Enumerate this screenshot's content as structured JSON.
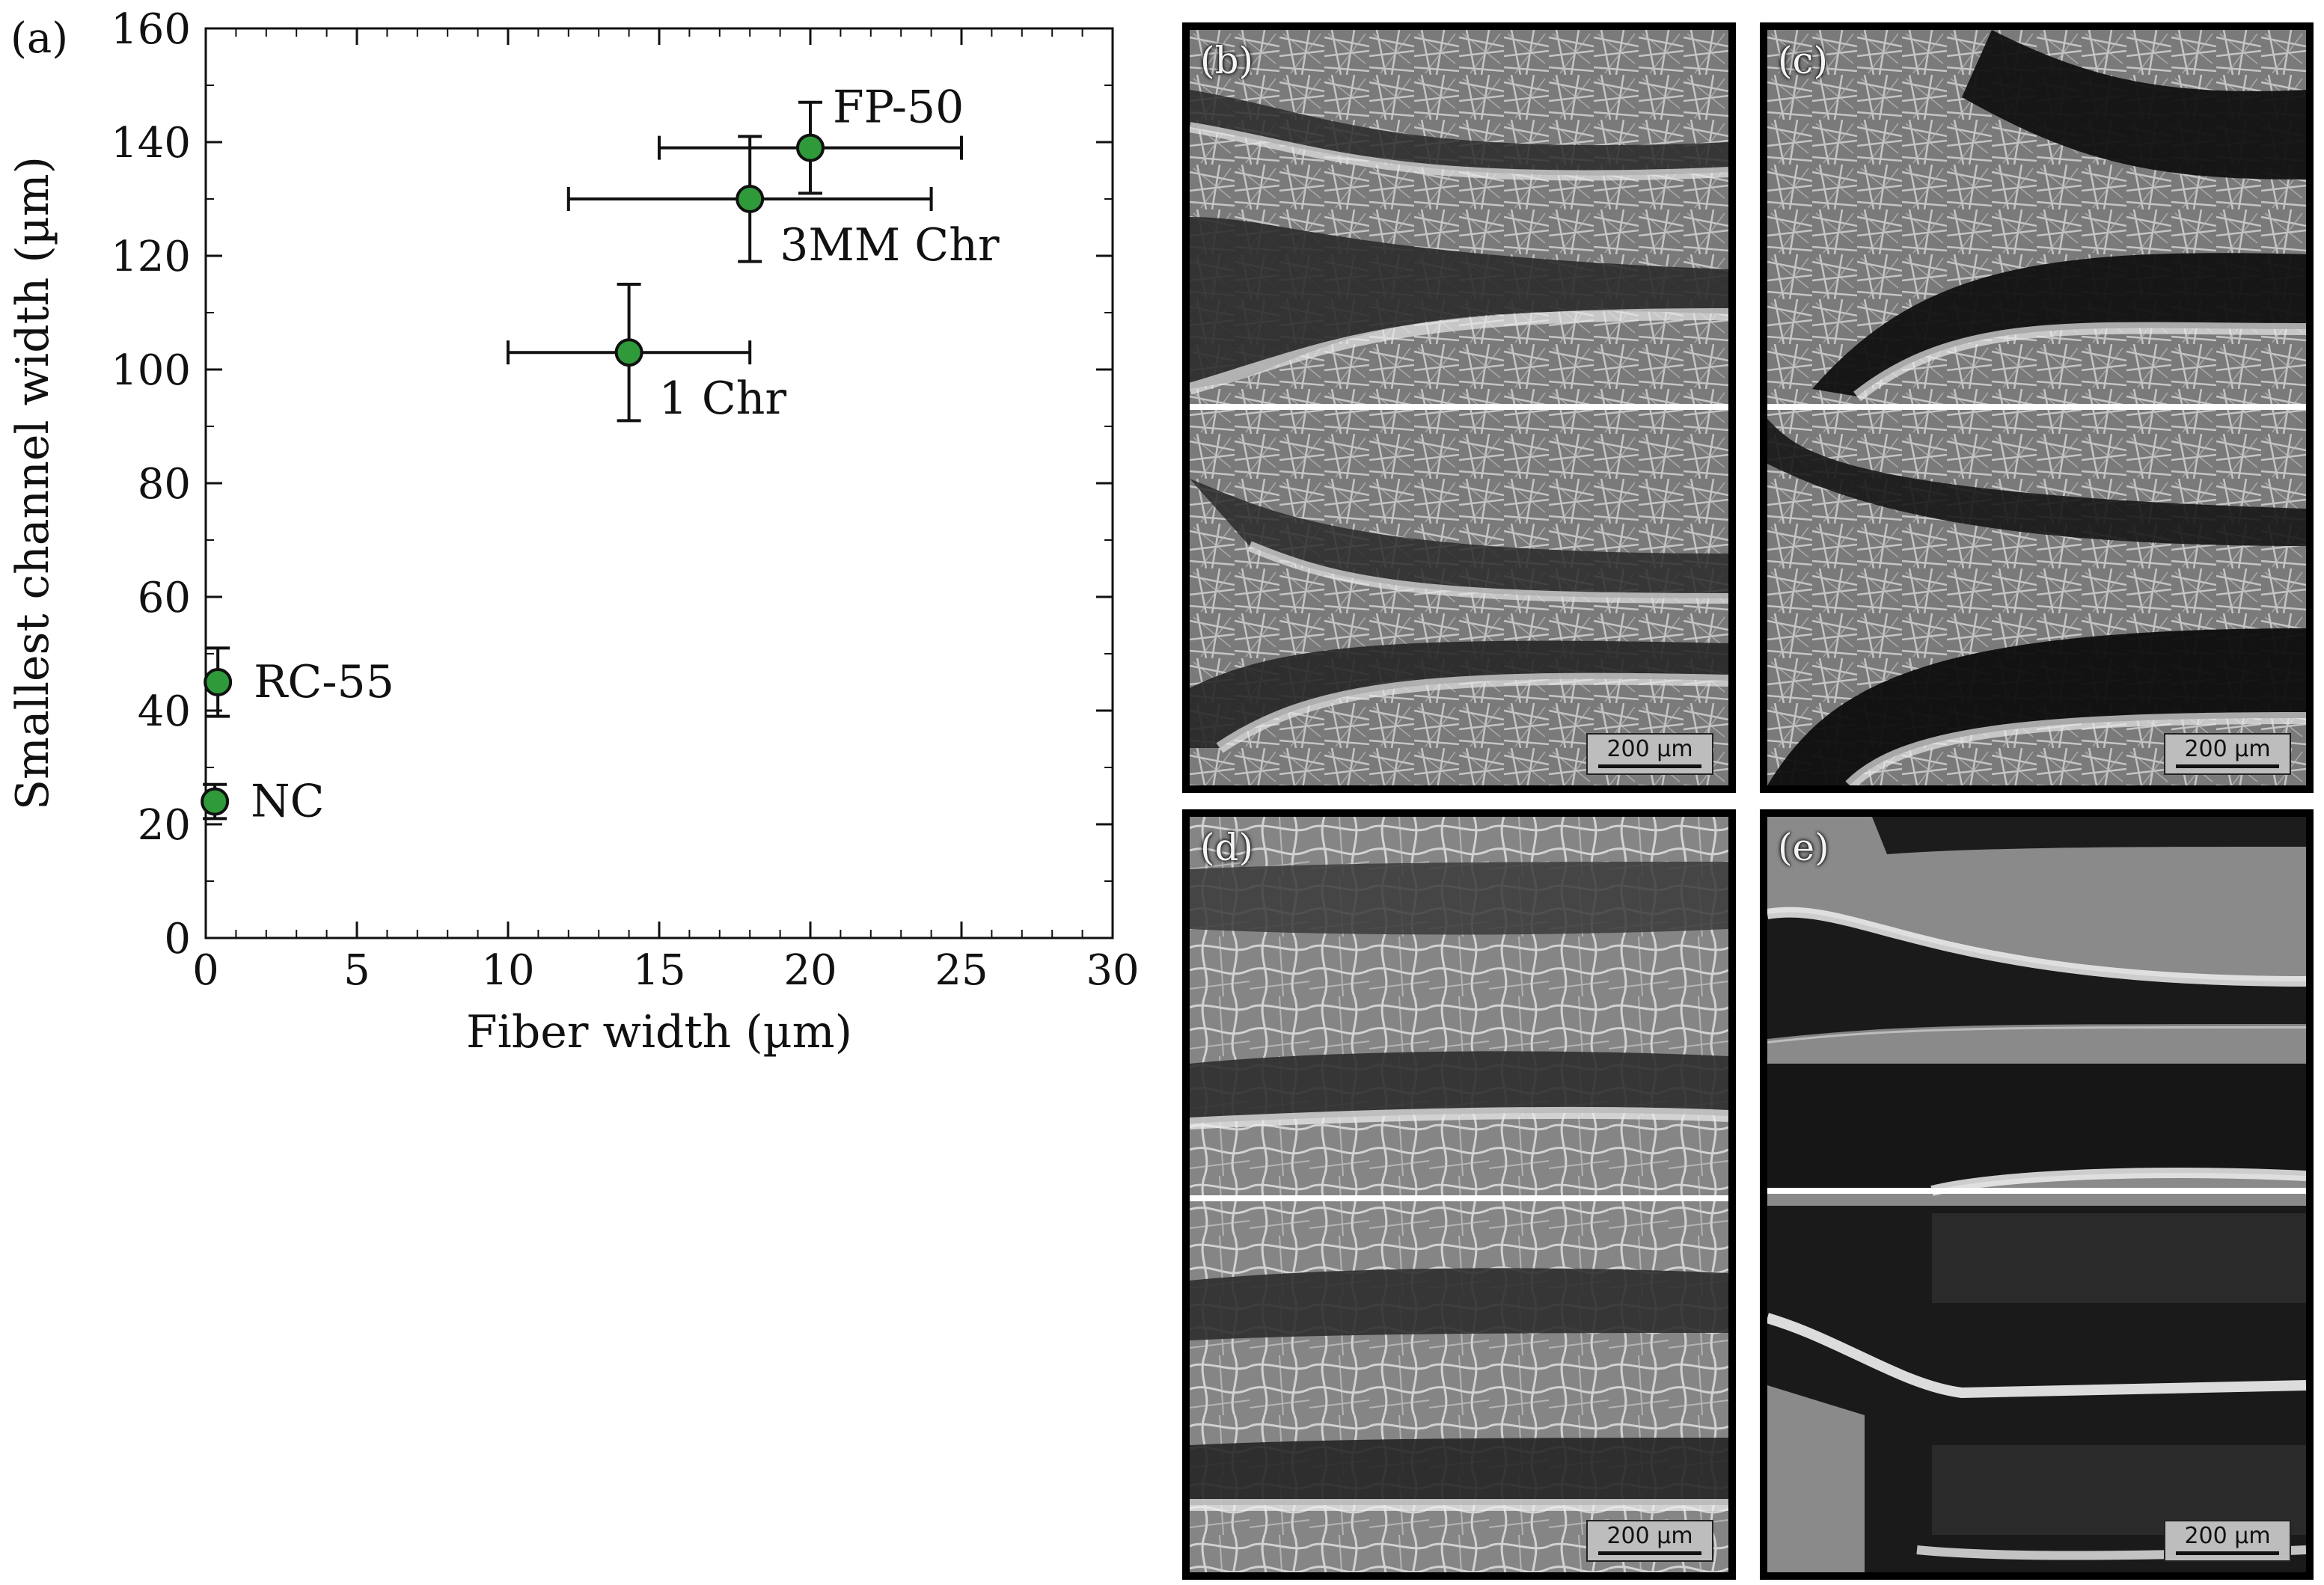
{
  "figure": {
    "panel_a_label": "(a)",
    "panels": [
      {
        "label": "(b)",
        "scale": "200 µm",
        "style": "fibrous"
      },
      {
        "label": "(c)",
        "scale": "200 µm",
        "style": "fibrous-dark"
      },
      {
        "label": "(d)",
        "scale": "200 µm",
        "style": "fibrous-coarse"
      },
      {
        "label": "(e)",
        "scale": "200 µm",
        "style": "smooth"
      }
    ]
  },
  "chart_data": {
    "type": "scatter",
    "xlabel": "Fiber width (µm)",
    "ylabel": "Smallest channel width (µm)",
    "xlim": [
      0,
      30
    ],
    "ylim": [
      0,
      160
    ],
    "x_ticks": [
      0,
      5,
      10,
      15,
      20,
      25,
      30
    ],
    "y_ticks": [
      0,
      20,
      40,
      60,
      80,
      100,
      120,
      140,
      160
    ],
    "marker_color": "#2e9a3a",
    "points": [
      {
        "label": "FP-50",
        "x": 20,
        "y": 139,
        "xerr_lo": 15,
        "xerr_hi": 25,
        "yerr_lo": 131,
        "yerr_hi": 147,
        "label_pos": "upper-right"
      },
      {
        "label": "3MM Chr",
        "x": 18,
        "y": 130,
        "xerr_lo": 12,
        "xerr_hi": 24,
        "yerr_lo": 119,
        "yerr_hi": 141,
        "label_pos": "lower-right"
      },
      {
        "label": "1 Chr",
        "x": 14,
        "y": 103,
        "xerr_lo": 10,
        "xerr_hi": 18,
        "yerr_lo": 91,
        "yerr_hi": 115,
        "label_pos": "lower-right"
      },
      {
        "label": "RC-55",
        "x": 0.4,
        "y": 45,
        "xerr_lo": 0.4,
        "xerr_hi": 0.4,
        "yerr_lo": 39,
        "yerr_hi": 51,
        "label_pos": "right"
      },
      {
        "label": "NC",
        "x": 0.3,
        "y": 24,
        "xerr_lo": 0.3,
        "xerr_hi": 0.3,
        "yerr_lo": 21,
        "yerr_hi": 27,
        "label_pos": "right"
      }
    ]
  }
}
